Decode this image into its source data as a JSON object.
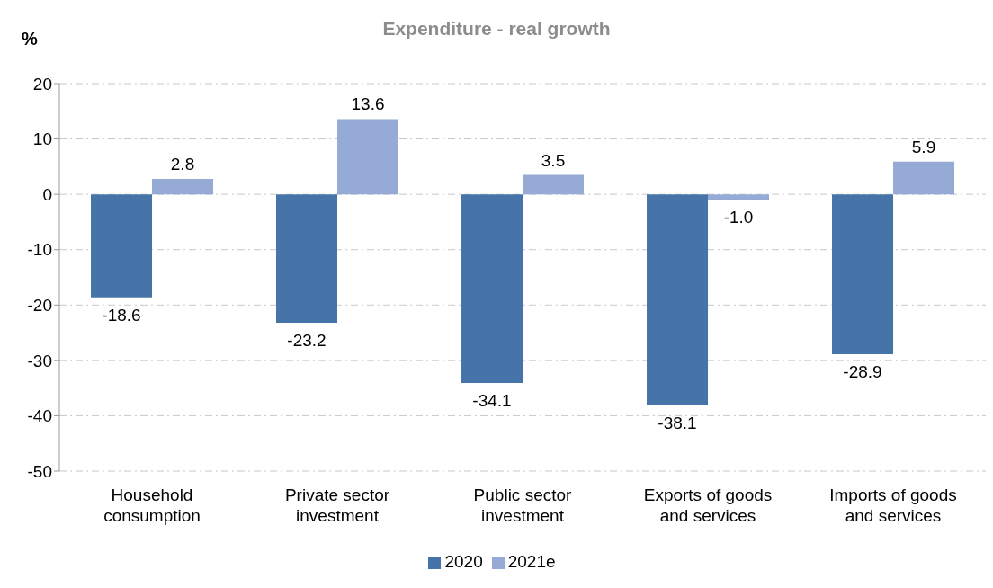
{
  "chart_data": {
    "type": "bar",
    "title": "Expenditure - real growth",
    "ylabel": "%",
    "categories": [
      "Household consumption",
      "Private sector investment",
      "Public sector investment",
      "Exports of goods and services",
      "Imports of goods and services"
    ],
    "series": [
      {
        "name": "2020",
        "color": "#4674a8",
        "values": [
          -18.6,
          -23.2,
          -34.1,
          -38.1,
          -28.9
        ],
        "value_labels": [
          "-18.6",
          "-23.2",
          "-34.1",
          "-38.1",
          "-28.9"
        ]
      },
      {
        "name": "2021e",
        "color": "#95aad4",
        "values": [
          2.8,
          13.6,
          3.5,
          -1.0,
          5.9
        ],
        "value_labels": [
          "2.8",
          "13.6",
          "3.5",
          "-1.0",
          "5.9"
        ]
      }
    ],
    "ylim": [
      -50,
      20
    ],
    "yticks": [
      -50,
      -40,
      -30,
      -20,
      -10,
      0,
      10,
      20
    ],
    "grid": "y",
    "legend": "bottom"
  }
}
